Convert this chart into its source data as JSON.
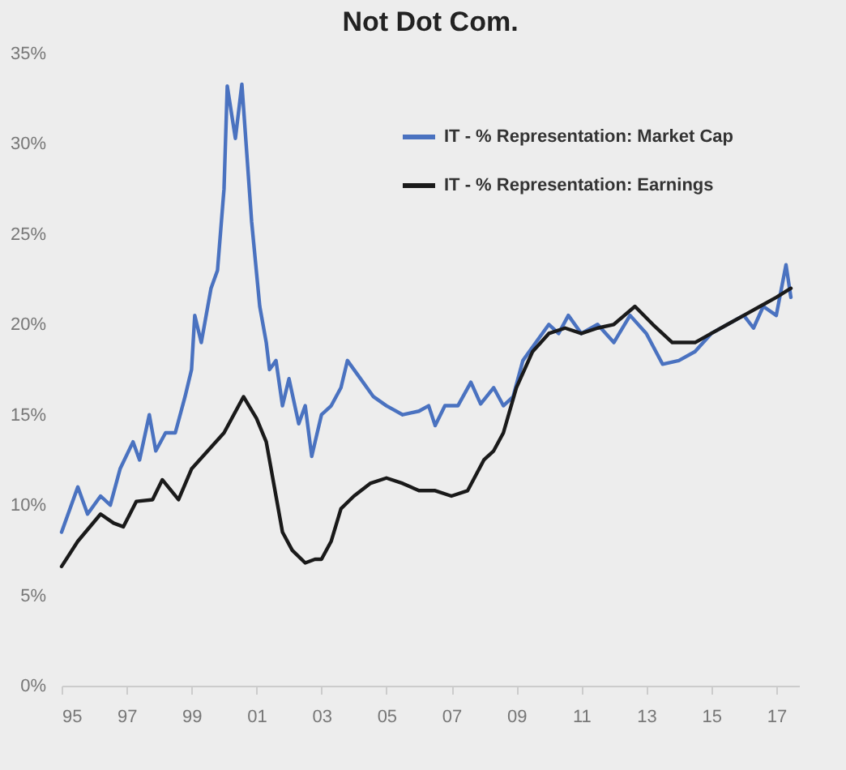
{
  "chart_data": {
    "type": "line",
    "title": "Not Dot Com.",
    "xlim": [
      1995,
      2017.7
    ],
    "xticks": [
      {
        "value": 1995,
        "label": "95"
      },
      {
        "value": 1997,
        "label": "97"
      },
      {
        "value": 1999,
        "label": "99"
      },
      {
        "value": 2001,
        "label": "01"
      },
      {
        "value": 2003,
        "label": "03"
      },
      {
        "value": 2005,
        "label": "05"
      },
      {
        "value": 2007,
        "label": "07"
      },
      {
        "value": 2009,
        "label": "09"
      },
      {
        "value": 2011,
        "label": "11"
      },
      {
        "value": 2013,
        "label": "13"
      },
      {
        "value": 2015,
        "label": "15"
      },
      {
        "value": 2017,
        "label": "17"
      }
    ],
    "ylim": [
      0,
      35
    ],
    "yticks": [
      {
        "value": 0,
        "label": "0%"
      },
      {
        "value": 5,
        "label": "5%"
      },
      {
        "value": 10,
        "label": "10%"
      },
      {
        "value": 15,
        "label": "15%"
      },
      {
        "value": 20,
        "label": "20%"
      },
      {
        "value": 25,
        "label": "25%"
      },
      {
        "value": 30,
        "label": "30%"
      },
      {
        "value": 35,
        "label": "35%"
      }
    ],
    "grid": false,
    "legend": "top right",
    "marker": "none",
    "line_style": "solid",
    "series": [
      {
        "name": "IT - % Representation: Market Cap",
        "color": "#4a72c0",
        "x": [
          1995.0,
          1995.5,
          1995.8,
          1996.2,
          1996.5,
          1996.8,
          1997.2,
          1997.4,
          1997.7,
          1997.9,
          1998.2,
          1998.5,
          1998.8,
          1999.0,
          1999.1,
          1999.3,
          1999.6,
          1999.8,
          2000.0,
          2000.1,
          2000.35,
          2000.55,
          2000.85,
          2001.1,
          2001.3,
          2001.4,
          2001.6,
          2001.8,
          2002.0,
          2002.3,
          2002.5,
          2002.7,
          2003.0,
          2003.3,
          2003.6,
          2003.8,
          2004.2,
          2004.6,
          2005.0,
          2005.5,
          2006.0,
          2006.3,
          2006.5,
          2006.8,
          2007.2,
          2007.6,
          2007.9,
          2008.3,
          2008.6,
          2008.9,
          2009.2,
          2009.6,
          2010.0,
          2010.3,
          2010.6,
          2011.0,
          2011.5,
          2012.0,
          2012.5,
          2013.0,
          2013.5,
          2014.0,
          2014.5,
          2015.0,
          2015.5,
          2016.0,
          2016.3,
          2016.6,
          2017.0,
          2017.3,
          2017.45
        ],
        "values": [
          8.5,
          11,
          9.5,
          10.5,
          10,
          12,
          13.5,
          12.5,
          15,
          13,
          14,
          14,
          16,
          17.5,
          20.5,
          19,
          22,
          23,
          27.5,
          33.2,
          30.3,
          33.3,
          25.7,
          21,
          19,
          17.5,
          18,
          15.5,
          17,
          14.5,
          15.5,
          12.7,
          15,
          15.5,
          16.5,
          18,
          17,
          16,
          15.5,
          15,
          15.2,
          15.5,
          14.4,
          15.5,
          15.5,
          16.8,
          15.6,
          16.5,
          15.5,
          16,
          18,
          19,
          20,
          19.5,
          20.5,
          19.5,
          20,
          19,
          20.5,
          19.5,
          17.8,
          18,
          18.5,
          19.5,
          20,
          20.5,
          19.8,
          21,
          20.5,
          23.3,
          21.5
        ]
      },
      {
        "name": "IT - % Representation: Earnings",
        "color": "#1a1a1a",
        "x": [
          1995.0,
          1995.5,
          1996.2,
          1996.6,
          1996.9,
          1997.3,
          1997.8,
          1998.1,
          1998.6,
          1999.0,
          1999.5,
          2000.0,
          2000.6,
          2001.0,
          2001.3,
          2001.6,
          2001.8,
          2002.1,
          2002.5,
          2002.8,
          2003.0,
          2003.3,
          2003.6,
          2004.0,
          2004.5,
          2005.0,
          2005.5,
          2006.0,
          2006.5,
          2007.0,
          2007.5,
          2008.0,
          2008.3,
          2008.6,
          2009.0,
          2009.5,
          2010.0,
          2010.5,
          2011.0,
          2011.5,
          2012.0,
          2012.65,
          2013.2,
          2013.8,
          2014.5,
          2015.0,
          2015.5,
          2016.0,
          2016.5,
          2017.0,
          2017.45
        ],
        "values": [
          6.6,
          8,
          9.5,
          9,
          8.8,
          10.2,
          10.3,
          11.4,
          10.3,
          12,
          13,
          14,
          16,
          14.8,
          13.5,
          10.5,
          8.5,
          7.5,
          6.8,
          7,
          7,
          8,
          9.8,
          10.5,
          11.2,
          11.5,
          11.2,
          10.8,
          10.8,
          10.5,
          10.8,
          12.5,
          13,
          14,
          16.5,
          18.5,
          19.5,
          19.8,
          19.5,
          19.8,
          20,
          21,
          20,
          19,
          19,
          19.5,
          20,
          20.5,
          21,
          21.5,
          22
        ]
      }
    ]
  }
}
